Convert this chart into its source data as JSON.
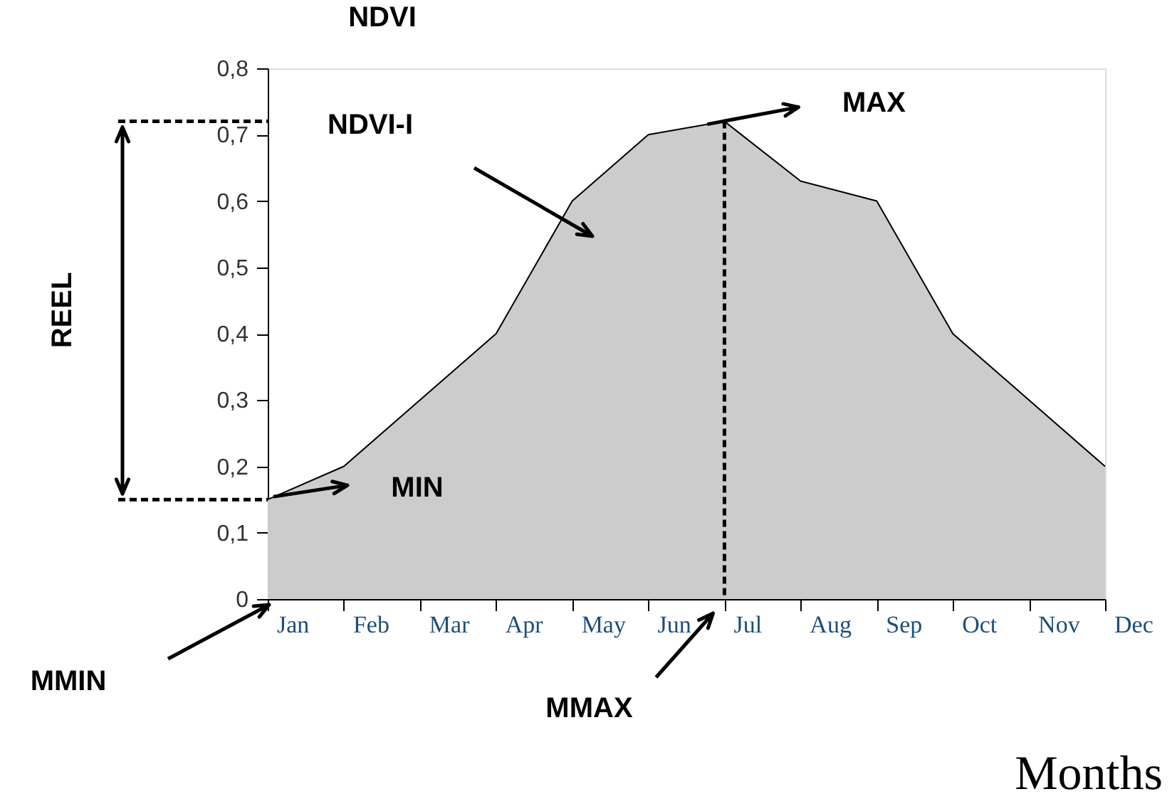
{
  "chart_data": {
    "type": "area",
    "ylabel": "NDVI",
    "xlabel": "Months",
    "categories": [
      "Jan",
      "Feb",
      "Mar",
      "Apr",
      "May",
      "Jun",
      "Jul",
      "Aug",
      "Sep",
      "Oct",
      "Nov",
      "Dec"
    ],
    "series": [
      {
        "color": "#cccccc",
        "values": [
          0.15,
          0.2,
          0.3,
          0.4,
          0.6,
          0.7,
          0.72,
          0.63,
          0.6,
          0.4,
          0.3,
          0.2
        ]
      }
    ],
    "ylim": [
      0,
      0.8
    ],
    "yticks": [
      0,
      {
        "value": 0.1,
        "label": "0,1"
      },
      {
        "value": 0.2,
        "label": "0,2"
      },
      {
        "value": 0.3,
        "label": "0,3"
      },
      {
        "value": 0.4,
        "label": "0,4"
      },
      {
        "value": 0.5,
        "label": "0,5"
      },
      {
        "value": 0.6,
        "label": "0,6"
      },
      {
        "value": 0.7,
        "label": "0,7"
      },
      {
        "value": 0.8,
        "label": "0,8"
      }
    ],
    "ref_lines": [
      {
        "axis": "x",
        "value": "Jul",
        "line_style": "dashed"
      }
    ],
    "annotations": [
      "MAX",
      "MIN",
      "MMIN",
      "MMAX",
      "NDVI-I",
      "REEL"
    ],
    "grid": false,
    "marker": "none",
    "line_style": "solid"
  }
}
